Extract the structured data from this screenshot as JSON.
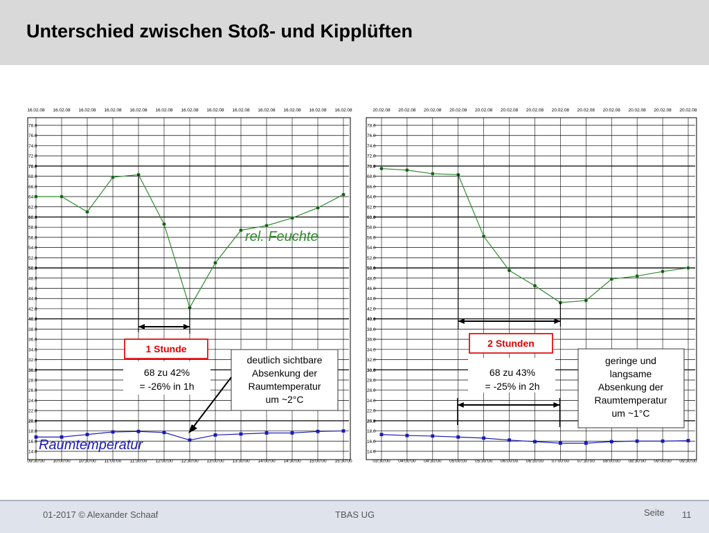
{
  "slide": {
    "title": "Unterschied zwischen Stoß- und Kipplüften",
    "footer_left": "01-2017 © Alexander Schaaf",
    "footer_center": "TBAS UG",
    "footer_seite": "Seite",
    "page_number": "11"
  },
  "colors": {
    "humidity": "#2e8b2e",
    "temperature": "#1a1ab4",
    "marker_humidity": "#1d5a1d",
    "accent_red": "#e01010",
    "header_bg": "#d9d9d9"
  },
  "chart_data": [
    {
      "type": "line",
      "title": "",
      "x_dates": [
        "16.02.08",
        "16.02.08",
        "16.02.08",
        "16.02.08",
        "16.02.08",
        "16.02.08",
        "16.02.08",
        "16.02.08",
        "16.02.08",
        "16.02.08",
        "16.02.08",
        "16.02.08",
        "16.02.08"
      ],
      "x_times": [
        "09:30:00",
        "10:00:00",
        "10:30:00",
        "11:00:00",
        "11:30:00",
        "12:00:00",
        "12:30:00",
        "13:00:00",
        "13:30:00",
        "14:00:00",
        "14:30:00",
        "15:00:00",
        "15:30:00"
      ],
      "y_ticks": [
        "78.0",
        "76.0",
        "74.0",
        "72.0",
        "70.0",
        "68.0",
        "66.0",
        "64.0",
        "62.0",
        "60.0",
        "58.0",
        "56.0",
        "54.0",
        "52.0",
        "50.0",
        "48.0",
        "46.0",
        "44.0",
        "42.0",
        "40.0",
        "38.0",
        "36.0",
        "34.0",
        "32.0",
        "30.0",
        "28.0",
        "26.0",
        "24.0",
        "22.0",
        "20.0",
        "18.0",
        "16.0",
        "14.0"
      ],
      "ylim": [
        14,
        78
      ],
      "series": [
        {
          "name": "rel. Feuchte",
          "values": [
            64.0,
            64.0,
            61.0,
            67.8,
            68.3,
            58.6,
            42.2,
            51.0,
            57.4,
            58.3,
            59.8,
            61.8,
            64.4
          ]
        },
        {
          "name": "Raumtemperatur",
          "values": [
            16.8,
            16.8,
            17.3,
            17.8,
            17.9,
            17.7,
            16.2,
            17.2,
            17.4,
            17.6,
            17.6,
            17.9,
            18.0
          ]
        }
      ],
      "annotations": {
        "duration": "1 Stunde",
        "change_line1": "68 zu 42%",
        "change_line2": "= -26% in 1h",
        "note_lines": [
          "deutlich sichtbare",
          "Absenkung der",
          "Raumtemperatur",
          "um ~2°C"
        ]
      }
    },
    {
      "type": "line",
      "title": "",
      "x_dates": [
        "20.02.08",
        "20.02.08",
        "20.02.08",
        "20.02.08",
        "20.02.08",
        "20.02.08",
        "20.02.08",
        "20.02.08",
        "20.02.08",
        "20.02.08",
        "20.02.08",
        "20.02.08",
        "20.02.08"
      ],
      "x_times": [
        "03:30:00",
        "04:00:00",
        "04:30:00",
        "05:00:00",
        "05:30:00",
        "06:00:00",
        "06:30:00",
        "07:00:00",
        "07:30:00",
        "08:00:00",
        "08:30:00",
        "09:00:00",
        "09:30:00"
      ],
      "y_ticks": [
        "78.0",
        "76.0",
        "74.0",
        "72.0",
        "70.0",
        "68.0",
        "66.0",
        "64.0",
        "62.0",
        "60.0",
        "58.0",
        "56.0",
        "54.0",
        "52.0",
        "50.0",
        "48.0",
        "46.0",
        "44.0",
        "42.0",
        "40.0",
        "38.0",
        "36.0",
        "34.0",
        "32.0",
        "30.0",
        "28.0",
        "26.0",
        "24.0",
        "22.0",
        "20.0",
        "18.0",
        "16.0",
        "14.0"
      ],
      "ylim": [
        14,
        78
      ],
      "series": [
        {
          "name": "",
          "values": [
            69.5,
            69.2,
            68.5,
            68.3,
            56.2,
            49.5,
            46.5,
            43.2,
            43.6,
            47.8,
            48.4,
            49.3,
            50.0
          ]
        },
        {
          "name": "",
          "values": [
            17.3,
            17.1,
            17.0,
            16.8,
            16.6,
            16.2,
            15.9,
            15.6,
            15.6,
            15.9,
            16.0,
            16.0,
            16.1
          ]
        }
      ],
      "annotations": {
        "duration": "2 Stunden",
        "change_line1": "68 zu 43%",
        "change_line2": "= -25% in 2h",
        "note_lines": [
          "geringe und",
          "langsame",
          "Absenkung der",
          "Raumtemperatur",
          "um ~1°C"
        ]
      }
    }
  ]
}
